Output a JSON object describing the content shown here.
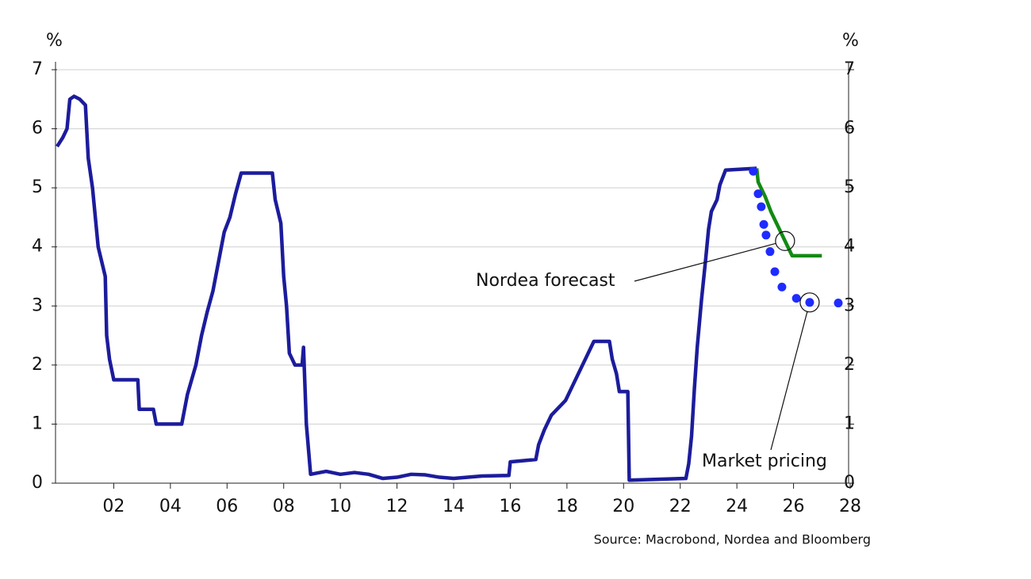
{
  "chart_data": {
    "type": "line",
    "y_label": "%",
    "y2_label": "%",
    "xlim": [
      2000,
      2028
    ],
    "xticks": [
      {
        "value": 2002,
        "label": "02"
      },
      {
        "value": 2004,
        "label": "04"
      },
      {
        "value": 2006,
        "label": "06"
      },
      {
        "value": 2008,
        "label": "08"
      },
      {
        "value": 2010,
        "label": "10"
      },
      {
        "value": 2012,
        "label": "12"
      },
      {
        "value": 2014,
        "label": "14"
      },
      {
        "value": 2016,
        "label": "16"
      },
      {
        "value": 2018,
        "label": "18"
      },
      {
        "value": 2020,
        "label": "20"
      },
      {
        "value": 2022,
        "label": "22"
      },
      {
        "value": 2024,
        "label": "24"
      },
      {
        "value": 2026,
        "label": "26"
      },
      {
        "value": 2028,
        "label": "28"
      }
    ],
    "ylim": [
      0,
      7
    ],
    "yticks": [
      0,
      1,
      2,
      3,
      4,
      5,
      6,
      7
    ],
    "y2lim": [
      0,
      7
    ],
    "y2ticks": [
      0,
      1,
      2,
      3,
      4,
      5,
      6,
      7
    ],
    "grid": true,
    "series": [
      {
        "color": "#1c1c9c",
        "style": "line",
        "x": [
          2000.0,
          2000.2,
          2000.35,
          2000.45,
          2000.6,
          2000.8,
          2001.0,
          2001.1,
          2001.25,
          2001.35,
          2001.45,
          2001.6,
          2001.7,
          2001.75,
          2001.85,
          2002.0,
          2002.5,
          2002.85,
          2002.9,
          2003.4,
          2003.5,
          2004.4,
          2004.5,
          2004.6,
          2004.75,
          2004.9,
          2005.1,
          2005.3,
          2005.5,
          2005.7,
          2005.9,
          2006.1,
          2006.3,
          2006.5,
          2007.6,
          2007.7,
          2007.9,
          2008.0,
          2008.1,
          2008.2,
          2008.4,
          2008.65,
          2008.7,
          2008.8,
          2008.95,
          2009.5,
          2010.0,
          2010.5,
          2011.0,
          2011.5,
          2012.0,
          2012.5,
          2013.0,
          2013.5,
          2014.0,
          2015.0,
          2015.95,
          2016.0,
          2016.9,
          2017.0,
          2017.2,
          2017.45,
          2017.95,
          2018.2,
          2018.45,
          2018.7,
          2018.95,
          2019.5,
          2019.6,
          2019.75,
          2019.85,
          2020.15,
          2020.2,
          2022.2,
          2022.3,
          2022.4,
          2022.5,
          2022.6,
          2022.75,
          2022.9,
          2023.0,
          2023.1,
          2023.3,
          2023.4,
          2023.6,
          2024.7
        ],
        "values": [
          5.7,
          5.85,
          6.0,
          6.5,
          6.55,
          6.5,
          6.4,
          5.5,
          5.0,
          4.5,
          4.0,
          3.7,
          3.5,
          2.5,
          2.1,
          1.75,
          1.75,
          1.75,
          1.25,
          1.25,
          1.0,
          1.0,
          1.25,
          1.5,
          1.75,
          2.0,
          2.5,
          2.9,
          3.25,
          3.75,
          4.25,
          4.5,
          4.9,
          5.25,
          5.25,
          4.8,
          4.4,
          3.5,
          3.0,
          2.2,
          2.0,
          2.0,
          2.3,
          1.0,
          0.15,
          0.2,
          0.15,
          0.18,
          0.15,
          0.08,
          0.1,
          0.15,
          0.14,
          0.1,
          0.08,
          0.12,
          0.13,
          0.36,
          0.4,
          0.65,
          0.9,
          1.15,
          1.4,
          1.65,
          1.9,
          2.15,
          2.4,
          2.4,
          2.1,
          1.85,
          1.55,
          1.55,
          0.05,
          0.08,
          0.33,
          0.8,
          1.6,
          2.3,
          3.1,
          3.8,
          4.3,
          4.6,
          4.8,
          5.05,
          5.3,
          5.33
        ]
      },
      {
        "color": "#138a13",
        "style": "line",
        "x": [
          2024.7,
          2024.75,
          2025.0,
          2025.2,
          2025.45,
          2025.7,
          2025.95,
          2027.0
        ],
        "values": [
          5.33,
          5.1,
          4.85,
          4.6,
          4.35,
          4.1,
          3.85,
          3.85
        ]
      },
      {
        "color": "#1e2bff",
        "style": "dots",
        "axis": "y2",
        "x": [
          2024.58,
          2024.75,
          2024.86,
          2024.95,
          2025.03,
          2025.17,
          2025.34,
          2025.59,
          2026.1,
          2026.57,
          2027.58
        ],
        "values": [
          5.28,
          4.9,
          4.68,
          4.38,
          4.2,
          3.92,
          3.58,
          3.32,
          3.13,
          3.06,
          3.05
        ]
      }
    ],
    "annotations": [
      {
        "text": "Nordea forecast"
      },
      {
        "text": "Market pricing"
      }
    ],
    "source": "Source: Macrobond, Nordea and Bloomberg"
  }
}
